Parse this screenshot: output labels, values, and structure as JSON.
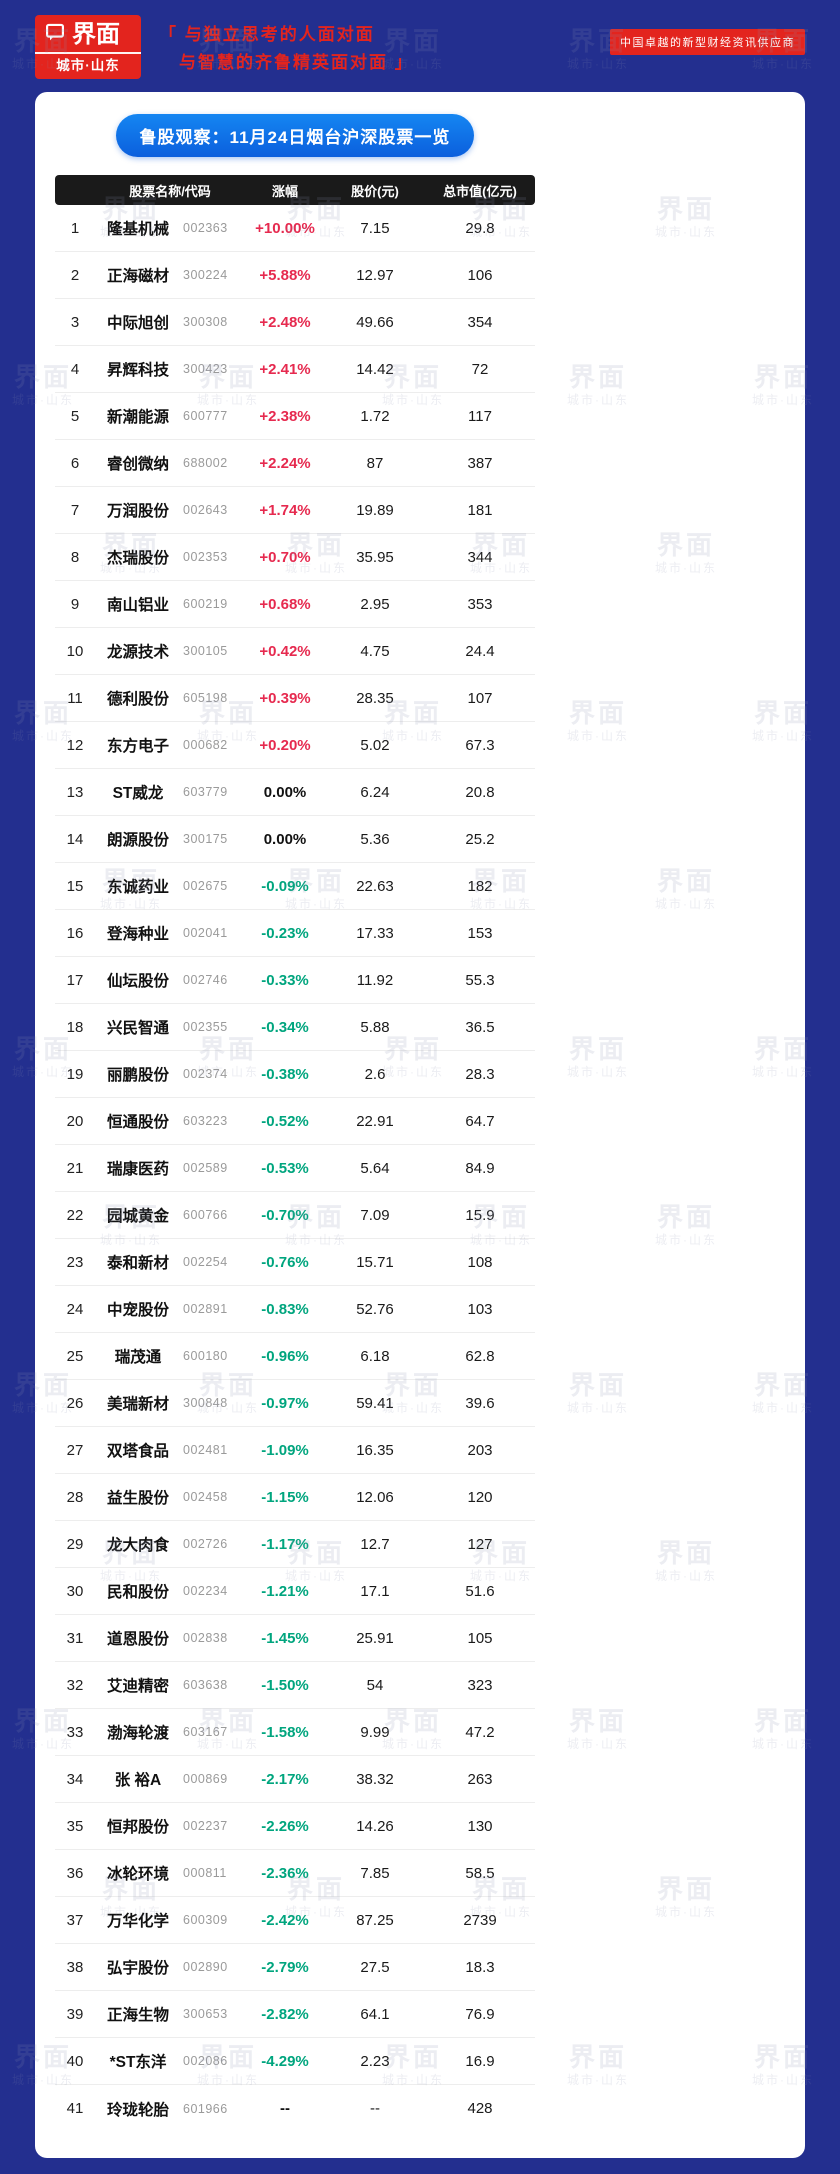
{
  "header": {
    "logo": {
      "brand": "界面",
      "sub": "城市·山东"
    },
    "quote": {
      "open": "「",
      "line1": "与独立思考的人面对面",
      "line2": "与智慧的齐鲁精英面对面",
      "close": "」"
    },
    "tagline": "中国卓越的新型财经资讯供应商"
  },
  "watermark": {
    "line1": "界面",
    "line2": "城市·山东"
  },
  "colors": {
    "bg": "#232f8f",
    "brand": "#e3241e",
    "banner1": "#1586f2",
    "banner2": "#0b5fdd",
    "bar": "#1a1a1a",
    "up": "#e62a4f",
    "down": "#00a57e"
  },
  "chart_data": {
    "type": "table",
    "title": "鲁股观察：11月24日烟台沪深股票一览",
    "columns": [
      "",
      "股票名称/代码",
      "涨幅",
      "股价(元)",
      "总市值(亿元)"
    ],
    "rows": [
      {
        "no": "1",
        "name": "隆基机械",
        "code": "002363",
        "change": "+10.00%",
        "price": "7.15",
        "cap": "29.8"
      },
      {
        "no": "2",
        "name": "正海磁材",
        "code": "300224",
        "change": "+5.88%",
        "price": "12.97",
        "cap": "106"
      },
      {
        "no": "3",
        "name": "中际旭创",
        "code": "300308",
        "change": "+2.48%",
        "price": "49.66",
        "cap": "354"
      },
      {
        "no": "4",
        "name": "昇辉科技",
        "code": "300423",
        "change": "+2.41%",
        "price": "14.42",
        "cap": "72"
      },
      {
        "no": "5",
        "name": "新潮能源",
        "code": "600777",
        "change": "+2.38%",
        "price": "1.72",
        "cap": "117"
      },
      {
        "no": "6",
        "name": "睿创微纳",
        "code": "688002",
        "change": "+2.24%",
        "price": "87",
        "cap": "387"
      },
      {
        "no": "7",
        "name": "万润股份",
        "code": "002643",
        "change": "+1.74%",
        "price": "19.89",
        "cap": "181"
      },
      {
        "no": "8",
        "name": "杰瑞股份",
        "code": "002353",
        "change": "+0.70%",
        "price": "35.95",
        "cap": "344"
      },
      {
        "no": "9",
        "name": "南山铝业",
        "code": "600219",
        "change": "+0.68%",
        "price": "2.95",
        "cap": "353"
      },
      {
        "no": "10",
        "name": "龙源技术",
        "code": "300105",
        "change": "+0.42%",
        "price": "4.75",
        "cap": "24.4"
      },
      {
        "no": "11",
        "name": "德利股份",
        "code": "605198",
        "change": "+0.39%",
        "price": "28.35",
        "cap": "107"
      },
      {
        "no": "12",
        "name": "东方电子",
        "code": "000682",
        "change": "+0.20%",
        "price": "5.02",
        "cap": "67.3"
      },
      {
        "no": "13",
        "name": "ST威龙",
        "code": "603779",
        "change": "0.00%",
        "price": "6.24",
        "cap": "20.8"
      },
      {
        "no": "14",
        "name": "朗源股份",
        "code": "300175",
        "change": "0.00%",
        "price": "5.36",
        "cap": "25.2"
      },
      {
        "no": "15",
        "name": "东诚药业",
        "code": "002675",
        "change": "-0.09%",
        "price": "22.63",
        "cap": "182"
      },
      {
        "no": "16",
        "name": "登海种业",
        "code": "002041",
        "change": "-0.23%",
        "price": "17.33",
        "cap": "153"
      },
      {
        "no": "17",
        "name": "仙坛股份",
        "code": "002746",
        "change": "-0.33%",
        "price": "11.92",
        "cap": "55.3"
      },
      {
        "no": "18",
        "name": "兴民智通",
        "code": "002355",
        "change": "-0.34%",
        "price": "5.88",
        "cap": "36.5"
      },
      {
        "no": "19",
        "name": "丽鹏股份",
        "code": "002374",
        "change": "-0.38%",
        "price": "2.6",
        "cap": "28.3"
      },
      {
        "no": "20",
        "name": "恒通股份",
        "code": "603223",
        "change": "-0.52%",
        "price": "22.91",
        "cap": "64.7"
      },
      {
        "no": "21",
        "name": "瑞康医药",
        "code": "002589",
        "change": "-0.53%",
        "price": "5.64",
        "cap": "84.9"
      },
      {
        "no": "22",
        "name": "园城黄金",
        "code": "600766",
        "change": "-0.70%",
        "price": "7.09",
        "cap": "15.9"
      },
      {
        "no": "23",
        "name": "泰和新材",
        "code": "002254",
        "change": "-0.76%",
        "price": "15.71",
        "cap": "108"
      },
      {
        "no": "24",
        "name": "中宠股份",
        "code": "002891",
        "change": "-0.83%",
        "price": "52.76",
        "cap": "103"
      },
      {
        "no": "25",
        "name": "瑞茂通",
        "code": "600180",
        "change": "-0.96%",
        "price": "6.18",
        "cap": "62.8"
      },
      {
        "no": "26",
        "name": "美瑞新材",
        "code": "300848",
        "change": "-0.97%",
        "price": "59.41",
        "cap": "39.6"
      },
      {
        "no": "27",
        "name": "双塔食品",
        "code": "002481",
        "change": "-1.09%",
        "price": "16.35",
        "cap": "203"
      },
      {
        "no": "28",
        "name": "益生股份",
        "code": "002458",
        "change": "-1.15%",
        "price": "12.06",
        "cap": "120"
      },
      {
        "no": "29",
        "name": "龙大肉食",
        "code": "002726",
        "change": "-1.17%",
        "price": "12.7",
        "cap": "127"
      },
      {
        "no": "30",
        "name": "民和股份",
        "code": "002234",
        "change": "-1.21%",
        "price": "17.1",
        "cap": "51.6"
      },
      {
        "no": "31",
        "name": "道恩股份",
        "code": "002838",
        "change": "-1.45%",
        "price": "25.91",
        "cap": "105"
      },
      {
        "no": "32",
        "name": "艾迪精密",
        "code": "603638",
        "change": "-1.50%",
        "price": "54",
        "cap": "323"
      },
      {
        "no": "33",
        "name": "渤海轮渡",
        "code": "603167",
        "change": "-1.58%",
        "price": "9.99",
        "cap": "47.2"
      },
      {
        "no": "34",
        "name": "张 裕A",
        "code": "000869",
        "change": "-2.17%",
        "price": "38.32",
        "cap": "263"
      },
      {
        "no": "35",
        "name": "恒邦股份",
        "code": "002237",
        "change": "-2.26%",
        "price": "14.26",
        "cap": "130"
      },
      {
        "no": "36",
        "name": "冰轮环境",
        "code": "000811",
        "change": "-2.36%",
        "price": "7.85",
        "cap": "58.5"
      },
      {
        "no": "37",
        "name": "万华化学",
        "code": "600309",
        "change": "-2.42%",
        "price": "87.25",
        "cap": "2739"
      },
      {
        "no": "38",
        "name": "弘宇股份",
        "code": "002890",
        "change": "-2.79%",
        "price": "27.5",
        "cap": "18.3"
      },
      {
        "no": "39",
        "name": "正海生物",
        "code": "300653",
        "change": "-2.82%",
        "price": "64.1",
        "cap": "76.9"
      },
      {
        "no": "40",
        "name": "*ST东洋",
        "code": "002086",
        "change": "-4.29%",
        "price": "2.23",
        "cap": "16.9"
      },
      {
        "no": "41",
        "name": "玲珑轮胎",
        "code": "601966",
        "change": "--",
        "price": "--",
        "cap": "428"
      }
    ]
  }
}
